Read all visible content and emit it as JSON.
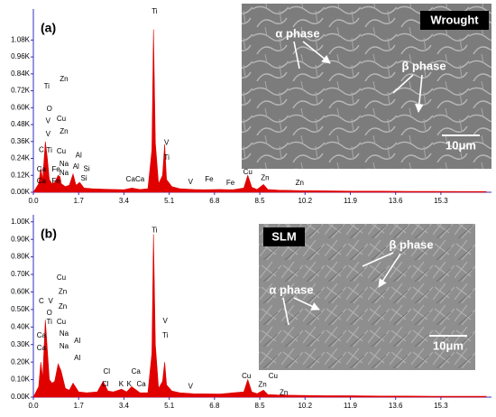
{
  "chart_data": [
    {
      "type": "area",
      "panel_label": "(a)",
      "color": "#e00000",
      "x": [
        0,
        0.1,
        0.2,
        0.28,
        0.35,
        0.45,
        0.52,
        0.6,
        0.7,
        0.8,
        0.93,
        1.0,
        1.05,
        1.2,
        1.35,
        1.49,
        1.6,
        1.74,
        1.9,
        2.2,
        2.6,
        3.0,
        3.4,
        3.7,
        4.0,
        4.3,
        4.45,
        4.51,
        4.58,
        4.7,
        4.85,
        4.93,
        5.0,
        5.2,
        5.5,
        6.0,
        6.4,
        7.0,
        7.5,
        7.9,
        8.05,
        8.2,
        8.4,
        8.64,
        8.8,
        9.2,
        10,
        11,
        12,
        13,
        14,
        15,
        16,
        17
      ],
      "values": [
        0,
        30,
        60,
        170,
        90,
        360,
        250,
        90,
        60,
        70,
        120,
        110,
        60,
        40,
        50,
        130,
        50,
        70,
        30,
        25,
        22,
        20,
        18,
        30,
        20,
        25,
        300,
        1155,
        350,
        60,
        120,
        340,
        90,
        40,
        25,
        20,
        18,
        20,
        18,
        30,
        120,
        35,
        20,
        55,
        20,
        15,
        12,
        10,
        8,
        8,
        6,
        6,
        5,
        5
      ],
      "xlim": [
        0,
        17.2
      ],
      "xticks": [
        {
          "value": 0,
          "label": "0.0"
        },
        1.7,
        3.4,
        5.1,
        6.8,
        8.5,
        10.2,
        11.9,
        13.6,
        15.3
      ],
      "ylim": [
        0,
        1300
      ],
      "yticks": [
        {
          "value": 0,
          "label": "0.00K"
        },
        {
          "value": 120,
          "label": "0.12K"
        },
        {
          "value": 240,
          "label": "0.24K"
        },
        {
          "value": 360,
          "label": "0.36K"
        },
        {
          "value": 480,
          "label": "0.48K"
        },
        {
          "value": 600,
          "label": "0.60K"
        },
        {
          "value": 720,
          "label": "0.72K"
        },
        {
          "value": 840,
          "label": "0.84K"
        },
        {
          "value": 960,
          "label": "0.96K"
        },
        {
          "value": 1080,
          "label": "1.08K"
        }
      ],
      "annotations": [
        {
          "text": "Ti",
          "x": 0.5,
          "y": 750
        },
        {
          "text": "O",
          "x": 0.6,
          "y": 590
        },
        {
          "text": "V",
          "x": 0.55,
          "y": 505
        },
        {
          "text": "V",
          "x": 0.55,
          "y": 410
        },
        {
          "text": "C",
          "x": 0.3,
          "y": 300
        },
        {
          "text": "Ti",
          "x": 0.6,
          "y": 295
        },
        {
          "text": "Cu",
          "x": 1.05,
          "y": 290
        },
        {
          "text": "Zn",
          "x": 1.15,
          "y": 800
        },
        {
          "text": "Cu",
          "x": 1.05,
          "y": 520
        },
        {
          "text": "Zn",
          "x": 1.15,
          "y": 430
        },
        {
          "text": "Ca",
          "x": 0.3,
          "y": 160
        },
        {
          "text": "Fe",
          "x": 0.85,
          "y": 160
        },
        {
          "text": "Na",
          "x": 1.15,
          "y": 200
        },
        {
          "text": "Al",
          "x": 1.7,
          "y": 260
        },
        {
          "text": "Al",
          "x": 1.6,
          "y": 180
        },
        {
          "text": "Si",
          "x": 2.0,
          "y": 165
        },
        {
          "text": "Na",
          "x": 1.15,
          "y": 135
        },
        {
          "text": "Ca",
          "x": 0.3,
          "y": 77
        },
        {
          "text": "Fe",
          "x": 0.85,
          "y": 77
        },
        {
          "text": "Si",
          "x": 1.9,
          "y": 96
        },
        {
          "text": "Ti",
          "x": 4.55,
          "y": 1280
        },
        {
          "text": "V",
          "x": 5.0,
          "y": 350
        },
        {
          "text": "Ti",
          "x": 5.0,
          "y": 245
        },
        {
          "text": "Ca",
          "x": 3.65,
          "y": 90
        },
        {
          "text": "Ca",
          "x": 4.0,
          "y": 90
        },
        {
          "text": "V",
          "x": 5.9,
          "y": 70
        },
        {
          "text": "Fe",
          "x": 6.6,
          "y": 90
        },
        {
          "text": "Fe",
          "x": 7.4,
          "y": 65
        },
        {
          "text": "Cu",
          "x": 8.05,
          "y": 140
        },
        {
          "text": "Zn",
          "x": 8.7,
          "y": 100
        },
        {
          "text": "Zn",
          "x": 10.0,
          "y": 65
        }
      ],
      "inset": {
        "label": "Wrought",
        "alpha": "α phase",
        "beta": "β phase",
        "scale_bar": "10μm"
      }
    },
    {
      "type": "area",
      "panel_label": "(b)",
      "color": "#e00000",
      "x": [
        0,
        0.1,
        0.2,
        0.28,
        0.35,
        0.45,
        0.52,
        0.6,
        0.7,
        0.8,
        0.93,
        1.04,
        1.2,
        1.35,
        1.49,
        1.7,
        2.0,
        2.4,
        2.62,
        2.8,
        3.0,
        3.31,
        3.5,
        3.69,
        4.0,
        4.3,
        4.45,
        4.51,
        4.58,
        4.7,
        4.85,
        4.93,
        5.0,
        5.2,
        5.5,
        6.0,
        7.0,
        7.9,
        8.05,
        8.2,
        8.4,
        8.64,
        8.8,
        9.2,
        10,
        11,
        12,
        13,
        14,
        15,
        16,
        17
      ],
      "values": [
        0,
        30,
        60,
        200,
        110,
        440,
        280,
        100,
        80,
        90,
        190,
        150,
        50,
        40,
        80,
        30,
        25,
        30,
        90,
        35,
        30,
        45,
        30,
        60,
        25,
        25,
        250,
        930,
        300,
        50,
        90,
        200,
        70,
        35,
        25,
        20,
        18,
        30,
        100,
        30,
        20,
        40,
        15,
        12,
        10,
        8,
        8,
        6,
        6,
        5,
        5,
        5
      ],
      "xlim": [
        0,
        17.2
      ],
      "xticks": [
        {
          "value": 0,
          "label": "0.0"
        },
        1.7,
        3.4,
        5.1,
        6.8,
        8.5,
        10.2,
        11.9,
        13.6,
        15.3
      ],
      "ylim": [
        0,
        1040
      ],
      "yticks": [
        {
          "value": 0,
          "label": "0.00K"
        },
        {
          "value": 100,
          "label": "0.10K"
        },
        {
          "value": 200,
          "label": "0.20K"
        },
        {
          "value": 300,
          "label": "0.30K"
        },
        {
          "value": 400,
          "label": "0.40K"
        },
        {
          "value": 500,
          "label": "0.50K"
        },
        {
          "value": 600,
          "label": "0.60K"
        },
        {
          "value": 700,
          "label": "0.70K"
        },
        {
          "value": 800,
          "label": "0.80K"
        },
        {
          "value": 900,
          "label": "0.90K"
        },
        {
          "value": 1000,
          "label": "1.00K"
        }
      ],
      "annotations": [
        {
          "text": "Cu",
          "x": 1.05,
          "y": 680
        },
        {
          "text": "C",
          "x": 0.3,
          "y": 546
        },
        {
          "text": "V",
          "x": 0.65,
          "y": 546
        },
        {
          "text": "Zn",
          "x": 1.1,
          "y": 600
        },
        {
          "text": "O",
          "x": 0.6,
          "y": 480
        },
        {
          "text": "Zn",
          "x": 1.1,
          "y": 515
        },
        {
          "text": "Ti",
          "x": 0.6,
          "y": 428
        },
        {
          "text": "Cu",
          "x": 1.05,
          "y": 428
        },
        {
          "text": "Na",
          "x": 1.15,
          "y": 360
        },
        {
          "text": "Ca",
          "x": 0.3,
          "y": 350
        },
        {
          "text": "Al",
          "x": 1.65,
          "y": 320
        },
        {
          "text": "Na",
          "x": 1.15,
          "y": 290
        },
        {
          "text": "Ca",
          "x": 0.3,
          "y": 278
        },
        {
          "text": "Al",
          "x": 1.65,
          "y": 222
        },
        {
          "text": "Ti",
          "x": 4.55,
          "y": 950
        },
        {
          "text": "V",
          "x": 4.95,
          "y": 433
        },
        {
          "text": "Ti",
          "x": 4.95,
          "y": 350
        },
        {
          "text": "Cl",
          "x": 2.75,
          "y": 144
        },
        {
          "text": "Ca",
          "x": 3.85,
          "y": 144
        },
        {
          "text": "Cl",
          "x": 2.7,
          "y": 72
        },
        {
          "text": "K",
          "x": 3.3,
          "y": 72
        },
        {
          "text": "K",
          "x": 3.6,
          "y": 72
        },
        {
          "text": "Ca",
          "x": 4.05,
          "y": 72
        },
        {
          "text": "V",
          "x": 5.9,
          "y": 60
        },
        {
          "text": "Cu",
          "x": 8.0,
          "y": 120
        },
        {
          "text": "Cu",
          "x": 9.0,
          "y": 120
        },
        {
          "text": "Zn",
          "x": 8.6,
          "y": 70
        },
        {
          "text": "Zn",
          "x": 9.4,
          "y": 25
        }
      ],
      "inset": {
        "label": "SLM",
        "alpha": "α phase",
        "beta": "β phase",
        "scale_bar": "10μm"
      }
    }
  ]
}
